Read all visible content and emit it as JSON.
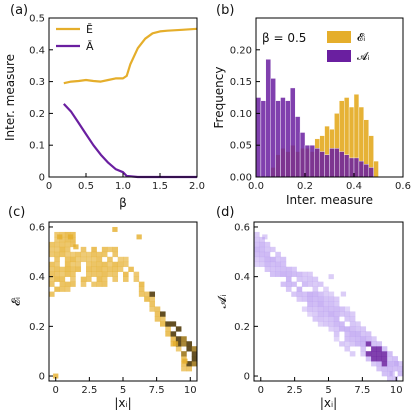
{
  "colors": {
    "E": "#E5AE2B",
    "A": "#6A1FA0",
    "heatA_base": "#B89BF0"
  },
  "chart_data": [
    {
      "panel": "(a)",
      "type": "line",
      "xlabel": "β",
      "ylabel": "Inter. measure",
      "xlim": [
        0,
        2.0
      ],
      "ylim": [
        0,
        0.5
      ],
      "xticks": [
        "0",
        "0.5",
        "1.0",
        "1.5",
        "2.0"
      ],
      "yticks": [
        "0",
        "0.1",
        "0.2",
        "0.3",
        "0.4",
        "0.5"
      ],
      "legend": [
        "Ē",
        "Ā"
      ],
      "series": [
        {
          "name": "Ē",
          "x": [
            0.2,
            0.3,
            0.4,
            0.5,
            0.6,
            0.7,
            0.8,
            0.9,
            1.0,
            1.05,
            1.1,
            1.2,
            1.3,
            1.4,
            1.5,
            1.6,
            1.8,
            2.0
          ],
          "y": [
            0.295,
            0.3,
            0.302,
            0.305,
            0.302,
            0.3,
            0.305,
            0.31,
            0.31,
            0.318,
            0.355,
            0.405,
            0.435,
            0.452,
            0.458,
            0.46,
            0.463,
            0.466
          ]
        },
        {
          "name": "Ā",
          "x": [
            0.2,
            0.3,
            0.4,
            0.5,
            0.6,
            0.7,
            0.8,
            0.9,
            1.0,
            1.05,
            1.2,
            1.5,
            2.0
          ],
          "y": [
            0.23,
            0.205,
            0.17,
            0.135,
            0.1,
            0.07,
            0.045,
            0.025,
            0.015,
            0.003,
            0.0,
            0.0,
            0.0
          ]
        }
      ]
    },
    {
      "panel": "(b)",
      "type": "bar",
      "annotation": "β = 0.5",
      "xlabel": "Inter. measure",
      "ylabel": "Frequency",
      "xlim": [
        0,
        0.6
      ],
      "ylim": [
        0,
        0.25
      ],
      "xticks": [
        "0.0",
        "0.2",
        "0.4",
        "0.6"
      ],
      "yticks": [
        "0.00",
        "0.05",
        "0.10",
        "0.15",
        "0.20"
      ],
      "legend": [
        "𝓔ᵢ",
        "𝓐ᵢ"
      ],
      "bin_width": 0.02,
      "bin_starts": [
        0.0,
        0.02,
        0.04,
        0.06,
        0.08,
        0.1,
        0.12,
        0.14,
        0.16,
        0.18,
        0.2,
        0.22,
        0.24,
        0.26,
        0.28,
        0.3,
        0.32,
        0.34,
        0.36,
        0.38,
        0.4,
        0.42,
        0.44,
        0.46,
        0.48
      ],
      "series": [
        {
          "name": "𝓔ᵢ",
          "values": [
            0.0,
            0.0,
            0.0,
            0.015,
            0.035,
            0.045,
            0.04,
            0.05,
            0.04,
            0.045,
            0.045,
            0.04,
            0.06,
            0.065,
            0.08,
            0.075,
            0.1,
            0.12,
            0.125,
            0.11,
            0.13,
            0.11,
            0.09,
            0.065,
            0.025
          ]
        },
        {
          "name": "𝓐ᵢ",
          "values": [
            0.125,
            0.12,
            0.185,
            0.155,
            0.12,
            0.125,
            0.12,
            0.14,
            0.095,
            0.07,
            0.05,
            0.05,
            0.045,
            0.04,
            0.035,
            0.045,
            0.045,
            0.04,
            0.035,
            0.03,
            0.03,
            0.025,
            0.02,
            0.015,
            0.0
          ]
        }
      ]
    },
    {
      "panel": "(c)",
      "type": "heatmap",
      "xlabel": "|xᵢ|",
      "ylabel": "𝓔ᵢ",
      "xlim": [
        -0.5,
        10.5
      ],
      "ylim": [
        -0.02,
        0.62
      ],
      "xticks": [
        "0",
        "2.5",
        "5",
        "7.5",
        "10"
      ],
      "yticks": [
        "0",
        "0.2",
        "0.4",
        "0.6"
      ]
    },
    {
      "panel": "(d)",
      "type": "heatmap",
      "xlabel": "|xᵢ|",
      "ylabel": "𝓐ᵢ",
      "xlim": [
        -0.5,
        10.5
      ],
      "ylim": [
        -0.02,
        0.62
      ],
      "xticks": [
        "0",
        "2.5",
        "5",
        "7.5",
        "10"
      ],
      "yticks": [
        "0",
        "0.2",
        "0.4",
        "0.6"
      ]
    }
  ]
}
